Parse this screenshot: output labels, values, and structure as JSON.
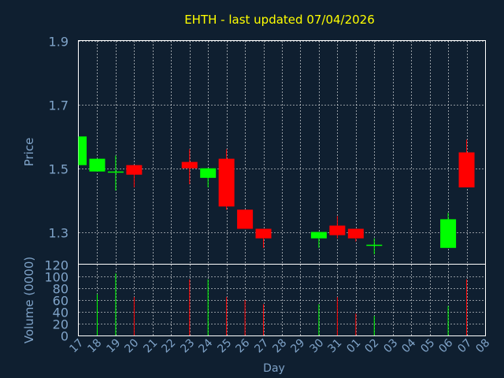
{
  "colors": {
    "background": "#0f1f30",
    "title": "#ffff00",
    "axis_text": "#7fa3c8",
    "frame": "#ffffff",
    "up": "#00ff00",
    "down": "#ff0000"
  },
  "chart_data": {
    "type": "candlestick",
    "title": "EHTH - last updated 07/04/2026",
    "xlabel": "Day",
    "ylabel": "Price",
    "volume_label": "Volume (0000)",
    "price_ylim": [
      1.2,
      1.9
    ],
    "price_ticks": [
      "1.3",
      "1.5",
      "1.7",
      "1.9"
    ],
    "volume_ylim": [
      0,
      120
    ],
    "volume_ticks": [
      "0",
      "20",
      "40",
      "60",
      "80",
      "100",
      "120"
    ],
    "x_ticks": [
      "17",
      "18",
      "19",
      "20",
      "21",
      "22",
      "23",
      "24",
      "25",
      "26",
      "27",
      "28",
      "29",
      "30",
      "31",
      "01",
      "02",
      "03",
      "04",
      "05",
      "06",
      "07",
      "08"
    ],
    "grid": true,
    "candles": [
      {
        "day": "17",
        "open": 1.51,
        "high": 1.6,
        "low": 1.51,
        "close": 1.6,
        "volume": null
      },
      {
        "day": "18",
        "open": 1.49,
        "high": 1.53,
        "low": 1.49,
        "close": 1.53,
        "volume": 70
      },
      {
        "day": "19",
        "open": 1.49,
        "high": 1.54,
        "low": 1.43,
        "close": 1.49,
        "volume": 105
      },
      {
        "day": "20",
        "open": 1.51,
        "high": 1.51,
        "low": 1.44,
        "close": 1.48,
        "volume": 65
      },
      {
        "day": "23",
        "open": 1.52,
        "high": 1.56,
        "low": 1.45,
        "close": 1.5,
        "volume": 95
      },
      {
        "day": "24",
        "open": 1.47,
        "high": 1.5,
        "low": 1.44,
        "close": 1.5,
        "volume": 95
      },
      {
        "day": "25",
        "open": 1.53,
        "high": 1.56,
        "low": 1.37,
        "close": 1.38,
        "volume": 65
      },
      {
        "day": "26",
        "open": 1.37,
        "high": 1.37,
        "low": 1.31,
        "close": 1.31,
        "volume": 60
      },
      {
        "day": "27",
        "open": 1.31,
        "high": 1.31,
        "low": 1.25,
        "close": 1.28,
        "volume": 53
      },
      {
        "day": "30",
        "open": 1.28,
        "high": 1.3,
        "low": 1.25,
        "close": 1.3,
        "volume": 53
      },
      {
        "day": "31",
        "open": 1.32,
        "high": 1.35,
        "low": 1.28,
        "close": 1.29,
        "volume": 65
      },
      {
        "day": "01",
        "open": 1.31,
        "high": 1.31,
        "low": 1.27,
        "close": 1.28,
        "volume": 37
      },
      {
        "day": "02",
        "open": 1.26,
        "high": 1.28,
        "low": 1.23,
        "close": 1.26,
        "volume": 33
      },
      {
        "day": "06",
        "open": 1.25,
        "high": 1.36,
        "low": 1.25,
        "close": 1.34,
        "volume": 50
      },
      {
        "day": "07",
        "open": 1.55,
        "high": 1.59,
        "low": 1.44,
        "close": 1.44,
        "volume": 95
      }
    ]
  }
}
